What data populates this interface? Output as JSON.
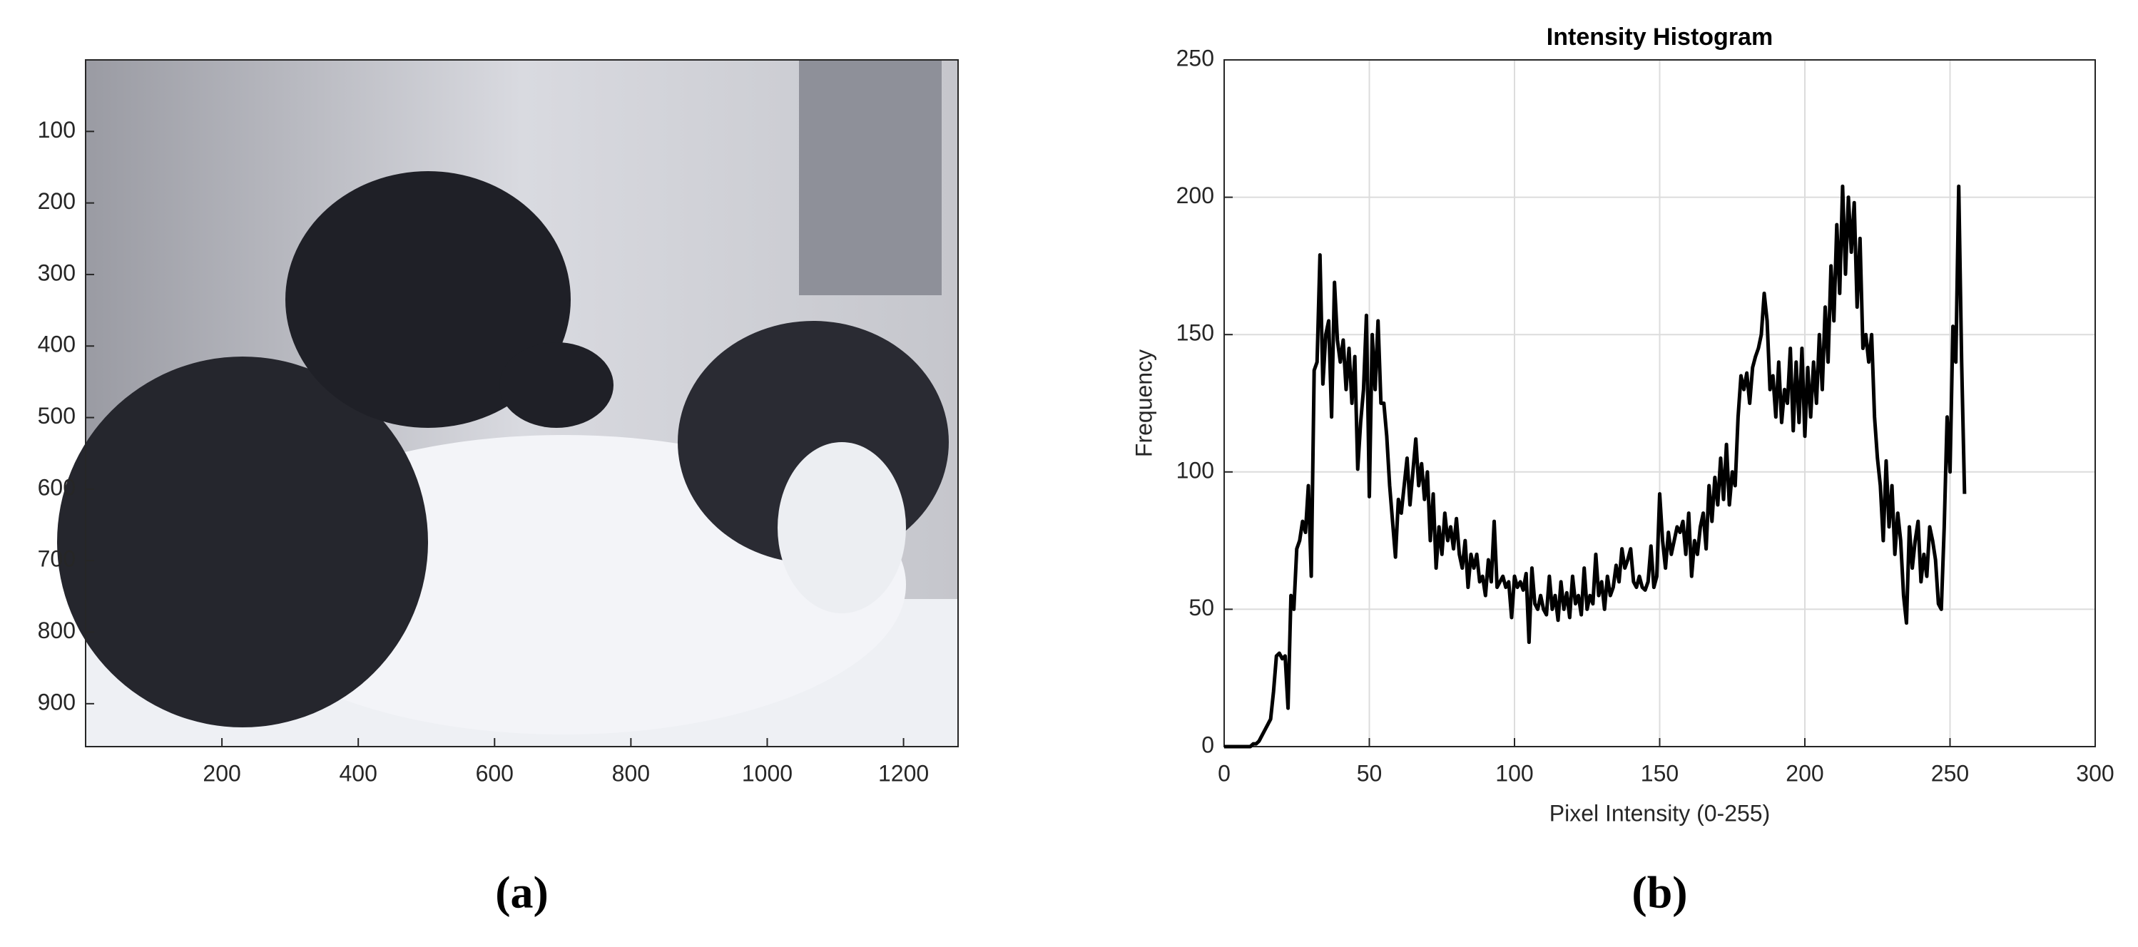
{
  "chart_data": [
    {
      "type": "image",
      "caption": "(a)",
      "xlim": [
        0,
        1280
      ],
      "ylim": [
        960,
        0
      ],
      "xticks": [
        200,
        400,
        600,
        800,
        1000,
        1200
      ],
      "yticks": [
        100,
        200,
        300,
        400,
        500,
        600,
        700,
        800,
        900
      ],
      "grid": false
    },
    {
      "type": "line",
      "caption": "(b)",
      "title": "Intensity Histogram",
      "xlabel": "Pixel Intensity (0-255)",
      "ylabel": "Frequency",
      "color": "#000000",
      "xlim": [
        0,
        300
      ],
      "ylim": [
        0,
        250
      ],
      "xticks": [
        0,
        50,
        100,
        150,
        200,
        250,
        300
      ],
      "yticks": [
        0,
        50,
        100,
        150,
        200,
        250
      ],
      "grid": true,
      "x": [
        0,
        1,
        2,
        3,
        4,
        5,
        6,
        7,
        8,
        9,
        10,
        11,
        12,
        13,
        14,
        15,
        16,
        17,
        18,
        19,
        20,
        21,
        22,
        23,
        24,
        25,
        26,
        27,
        28,
        29,
        30,
        31,
        32,
        33,
        34,
        35,
        36,
        37,
        38,
        39,
        40,
        41,
        42,
        43,
        44,
        45,
        46,
        47,
        48,
        49,
        50,
        51,
        52,
        53,
        54,
        55,
        56,
        57,
        58,
        59,
        60,
        61,
        62,
        63,
        64,
        65,
        66,
        67,
        68,
        69,
        70,
        71,
        72,
        73,
        74,
        75,
        76,
        77,
        78,
        79,
        80,
        81,
        82,
        83,
        84,
        85,
        86,
        87,
        88,
        89,
        90,
        91,
        92,
        93,
        94,
        95,
        96,
        97,
        98,
        99,
        100,
        101,
        102,
        103,
        104,
        105,
        106,
        107,
        108,
        109,
        110,
        111,
        112,
        113,
        114,
        115,
        116,
        117,
        118,
        119,
        120,
        121,
        122,
        123,
        124,
        125,
        126,
        127,
        128,
        129,
        130,
        131,
        132,
        133,
        134,
        135,
        136,
        137,
        138,
        139,
        140,
        141,
        142,
        143,
        144,
        145,
        146,
        147,
        148,
        149,
        150,
        151,
        152,
        153,
        154,
        155,
        156,
        157,
        158,
        159,
        160,
        161,
        162,
        163,
        164,
        165,
        166,
        167,
        168,
        169,
        170,
        171,
        172,
        173,
        174,
        175,
        176,
        177,
        178,
        179,
        180,
        181,
        182,
        183,
        184,
        185,
        186,
        187,
        188,
        189,
        190,
        191,
        192,
        193,
        194,
        195,
        196,
        197,
        198,
        199,
        200,
        201,
        202,
        203,
        204,
        205,
        206,
        207,
        208,
        209,
        210,
        211,
        212,
        213,
        214,
        215,
        216,
        217,
        218,
        219,
        220,
        221,
        222,
        223,
        224,
        225,
        226,
        227,
        228,
        229,
        230,
        231,
        232,
        233,
        234,
        235,
        236,
        237,
        238,
        239,
        240,
        241,
        242,
        243,
        244,
        245,
        246,
        247,
        248,
        249,
        250,
        251,
        252,
        253,
        254,
        255
      ],
      "values": [
        0,
        0,
        0,
        0,
        0,
        0,
        0,
        0,
        0,
        0,
        1,
        1,
        2,
        4,
        6,
        8,
        10,
        20,
        33,
        34,
        32,
        33,
        14,
        55,
        50,
        72,
        75,
        82,
        78,
        95,
        62,
        137,
        140,
        179,
        132,
        150,
        155,
        120,
        169,
        148,
        140,
        148,
        130,
        145,
        125,
        142,
        101,
        118,
        130,
        157,
        91,
        150,
        130,
        155,
        125,
        125,
        113,
        95,
        82,
        69,
        90,
        85,
        95,
        105,
        88,
        100,
        112,
        95,
        103,
        90,
        100,
        75,
        92,
        65,
        80,
        70,
        85,
        75,
        80,
        72,
        83,
        70,
        65,
        75,
        58,
        70,
        65,
        70,
        60,
        62,
        55,
        68,
        60,
        82,
        58,
        60,
        62,
        58,
        60,
        47,
        62,
        58,
        60,
        57,
        63,
        38,
        65,
        52,
        50,
        55,
        50,
        48,
        62,
        50,
        55,
        46,
        60,
        50,
        56,
        47,
        62,
        52,
        55,
        48,
        65,
        50,
        55,
        52,
        70,
        55,
        60,
        50,
        62,
        55,
        58,
        66,
        60,
        72,
        65,
        68,
        72,
        60,
        58,
        62,
        58,
        57,
        60,
        73,
        58,
        62,
        92,
        75,
        65,
        78,
        70,
        75,
        80,
        78,
        82,
        70,
        85,
        62,
        75,
        70,
        80,
        85,
        72,
        95,
        82,
        98,
        88,
        105,
        90,
        110,
        88,
        100,
        95,
        120,
        135,
        130,
        136,
        125,
        138,
        142,
        145,
        150,
        165,
        155,
        130,
        135,
        120,
        140,
        118,
        130,
        125,
        145,
        115,
        140,
        118,
        145,
        113,
        138,
        120,
        140,
        125,
        150,
        130,
        160,
        140,
        175,
        155,
        190,
        165,
        204,
        172,
        200,
        180,
        198,
        160,
        185,
        145,
        150,
        140,
        150,
        120,
        105,
        95,
        75,
        104,
        80,
        95,
        70,
        85,
        75,
        55,
        45,
        80,
        65,
        75,
        82,
        60,
        70,
        62,
        80,
        75,
        68,
        52,
        50,
        80,
        120,
        100,
        153,
        140,
        204,
        140,
        92
      ]
    }
  ]
}
